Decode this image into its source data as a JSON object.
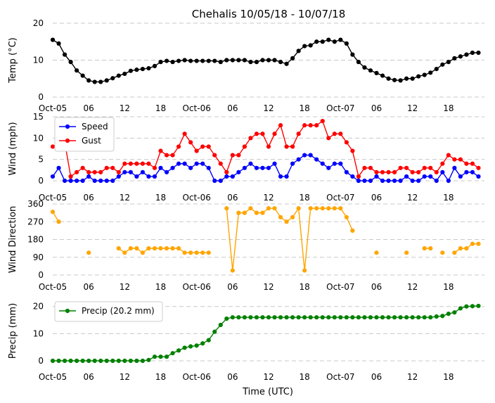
{
  "chart_data": {
    "type": "line",
    "title": "Chehalis 10/05/18 - 10/07/18",
    "xlabel": "Time (UTC)",
    "x_tick_labels": [
      "Oct-05",
      "06",
      "12",
      "18",
      "Oct-06",
      "06",
      "12",
      "18",
      "Oct-07",
      "06",
      "12",
      "18"
    ],
    "x_tick_hours": [
      0,
      6,
      12,
      18,
      24,
      30,
      36,
      42,
      48,
      54,
      60,
      66
    ],
    "xlim": [
      0,
      72
    ],
    "panels": [
      {
        "ylabel": "Temp (°C)",
        "ylim": [
          0,
          20
        ],
        "yticks": [
          0,
          10,
          20
        ],
        "series": [
          {
            "name": "Temp",
            "color": "#000000",
            "values": [
              15.5,
              14.5,
              11.5,
              9.5,
              7.2,
              5.8,
              4.5,
              4.1,
              4.1,
              4.5,
              5.1,
              5.8,
              6.3,
              7.1,
              7.4,
              7.6,
              7.8,
              8.4,
              9.5,
              9.8,
              9.5,
              9.8,
              10.0,
              9.8,
              9.8,
              9.8,
              9.8,
              9.8,
              9.5,
              10.0,
              10.0,
              10.0,
              10.0,
              9.5,
              9.5,
              10.0,
              10.0,
              10.0,
              9.5,
              9.0,
              10.5,
              12.5,
              13.8,
              14.0,
              15.0,
              15.0,
              15.5,
              15.0,
              15.5,
              14.5,
              11.5,
              9.5,
              8.0,
              7.2,
              6.5,
              5.8,
              5.0,
              4.6,
              4.5,
              5.0,
              5.0,
              5.6,
              6.0,
              6.6,
              7.6,
              8.8,
              9.5,
              10.5,
              11.0,
              11.5,
              12.0,
              12.0
            ],
            "legend": null
          }
        ]
      },
      {
        "ylabel": "Wind (mph)",
        "ylim": [
          0,
          15
        ],
        "yticks": [
          0,
          5,
          10,
          15
        ],
        "series": [
          {
            "name": "Speed",
            "color": "#0000ff",
            "values": [
              1,
              3,
              0,
              0,
              0,
              0,
              1,
              0,
              0,
              0,
              0,
              1,
              2,
              2,
              1,
              2,
              1,
              1,
              3,
              2,
              3,
              4,
              4,
              3,
              4,
              4,
              3,
              0,
              0,
              1,
              1,
              2,
              3,
              4,
              3,
              3,
              3,
              4,
              1,
              1,
              4,
              5,
              6,
              6,
              5,
              4,
              3,
              4,
              4,
              2,
              1,
              0,
              0,
              0,
              1,
              0,
              0,
              0,
              0,
              1,
              0,
              0,
              1,
              1,
              0,
              2,
              0,
              3,
              1,
              2,
              2,
              1
            ]
          },
          {
            "name": "Gust",
            "color": "#ff0000",
            "values": [
              8,
              9,
              9,
              1,
              2,
              3,
              2,
              2,
              2,
              3,
              3,
              2,
              4,
              4,
              4,
              4,
              4,
              3,
              7,
              6,
              6,
              8,
              11,
              9,
              7,
              8,
              8,
              6,
              4,
              2,
              6,
              6,
              8,
              10,
              11,
              11,
              8,
              11,
              13,
              8,
              8,
              11,
              13,
              13,
              13,
              14,
              10,
              11,
              11,
              9,
              7,
              1,
              3,
              3,
              2,
              2,
              2,
              2,
              3,
              3,
              2,
              2,
              3,
              3,
              2,
              4,
              6,
              5,
              5,
              4,
              4,
              3
            ]
          }
        ],
        "legend_entries": [
          "Speed",
          "Gust"
        ]
      },
      {
        "ylabel": "Wind Direction",
        "ylim": [
          0,
          360
        ],
        "yticks": [
          0,
          90,
          180,
          270,
          360
        ],
        "series": [
          {
            "name": "Direction",
            "color": "#ffa500",
            "values": [
              320,
              270,
              null,
              null,
              null,
              null,
              113,
              null,
              null,
              null,
              null,
              135,
              113,
              135,
              135,
              113,
              135,
              135,
              135,
              135,
              135,
              135,
              113,
              113,
              113,
              113,
              113,
              null,
              null,
              338,
              23,
              315,
              315,
              338,
              315,
              315,
              338,
              338,
              293,
              270,
              293,
              338,
              23,
              338,
              338,
              338,
              338,
              338,
              338,
              293,
              225,
              null,
              null,
              null,
              113,
              null,
              null,
              null,
              null,
              113,
              null,
              null,
              135,
              135,
              null,
              113,
              null,
              113,
              135,
              135,
              158,
              158
            ]
          }
        ]
      },
      {
        "ylabel": "Precip (mm)",
        "ylim": [
          0,
          22
        ],
        "yticks": [
          0,
          10,
          20
        ],
        "series": [
          {
            "name": "Precip",
            "color": "#008000",
            "values": [
              0,
              0,
              0,
              0,
              0,
              0,
              0,
              0,
              0,
              0,
              0,
              0,
              0,
              0,
              0,
              0,
              0.3,
              1.5,
              1.5,
              1.5,
              2.8,
              3.8,
              4.8,
              5.3,
              5.6,
              6.4,
              7.6,
              10.7,
              13.2,
              15.5,
              16.0,
              16.0,
              16.0,
              16.0,
              16.0,
              16.0,
              16.0,
              16.0,
              16.0,
              16.0,
              16.0,
              16.0,
              16.0,
              16.0,
              16.0,
              16.0,
              16.0,
              16.0,
              16.0,
              16.0,
              16.0,
              16.0,
              16.0,
              16.0,
              16.0,
              16.0,
              16.0,
              16.0,
              16.0,
              16.0,
              16.0,
              16.0,
              16.0,
              16.0,
              16.3,
              16.5,
              17.3,
              17.8,
              19.3,
              20.0,
              20.1,
              20.2
            ]
          }
        ],
        "legend_entries": [
          "Precip (20.2 mm)"
        ]
      }
    ]
  }
}
